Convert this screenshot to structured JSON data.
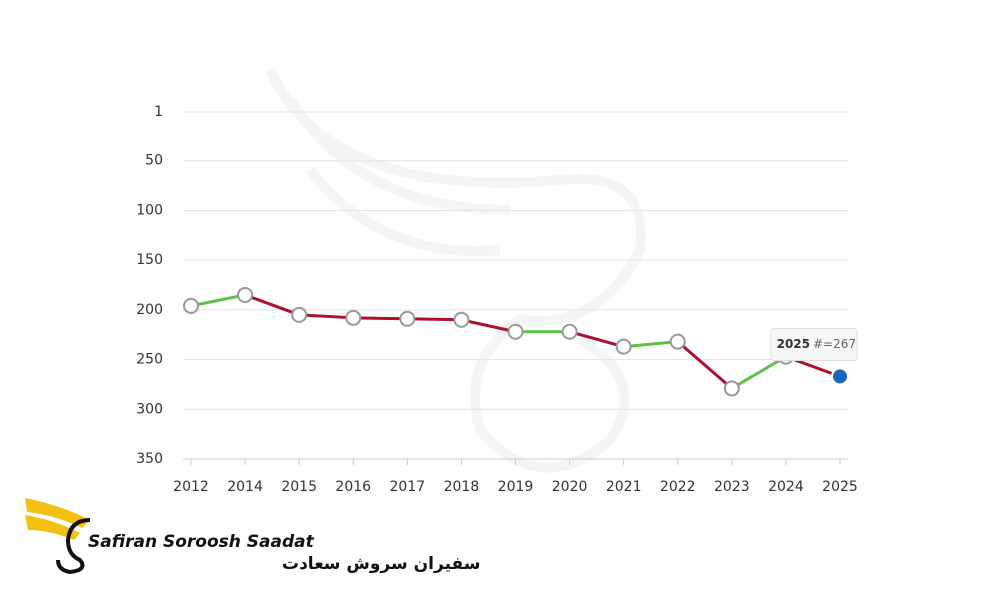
{
  "chart_data": {
    "type": "line",
    "categories": [
      "2012",
      "2014",
      "2015",
      "2016",
      "2017",
      "2018",
      "2019",
      "2020",
      "2021",
      "2022",
      "2023",
      "2024",
      "2025"
    ],
    "values": [
      196,
      185,
      205,
      208,
      209,
      210,
      222,
      222,
      237,
      232,
      279,
      247,
      267
    ],
    "ylim": [
      1,
      350
    ],
    "yticks": [
      1,
      50,
      100,
      150,
      200,
      250,
      300,
      350
    ],
    "y_reversed": true,
    "grid": true,
    "better_color": "#5cc149",
    "worse_color": "#ad0f2d",
    "highlight_color": "#1565c0",
    "tooltip_label": "#=267"
  },
  "logo": {
    "name": "Safiran Soroosh Saadat",
    "name_fa": "سفیران سروش سعادت"
  }
}
